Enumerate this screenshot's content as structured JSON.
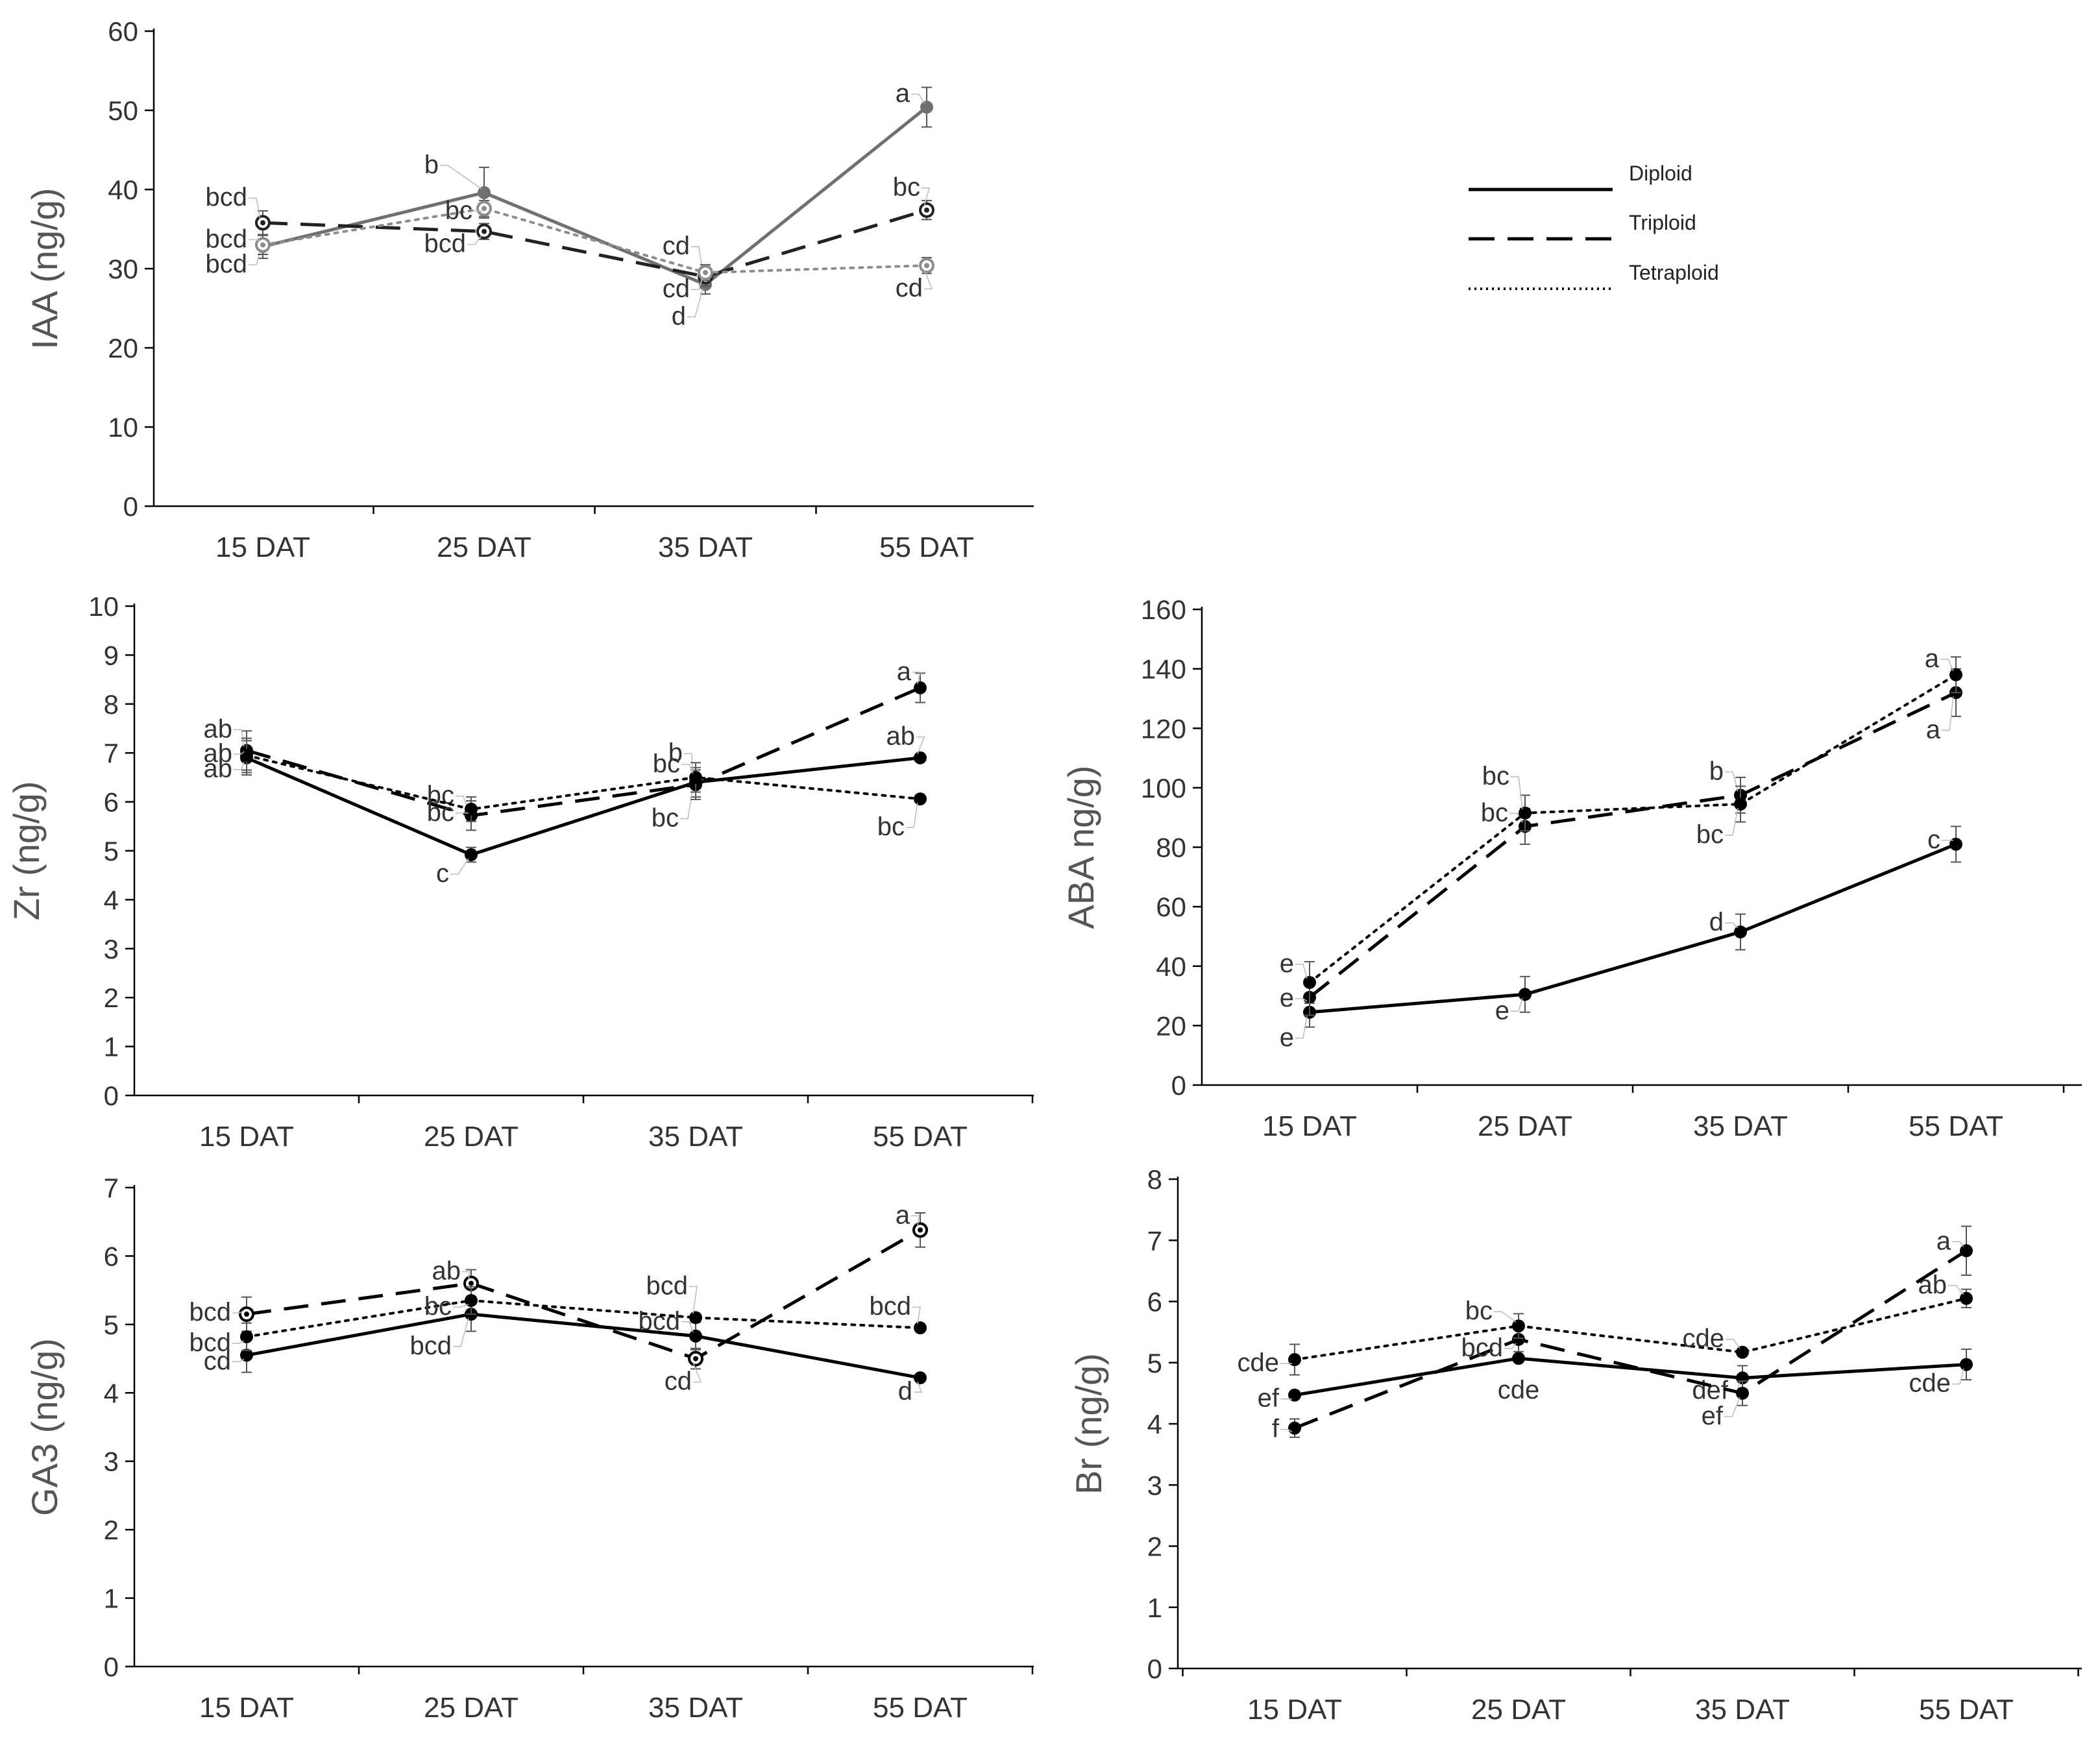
{
  "chart_data": [
    {
      "id": "iaa",
      "type": "line",
      "ylabel": "IAA (ng/g)",
      "categories": [
        "15 DAT",
        "25 DAT",
        "35 DAT",
        "55 DAT"
      ],
      "ylim": [
        0,
        60
      ],
      "yticks": [
        0,
        10,
        20,
        30,
        40,
        50,
        60
      ],
      "series": [
        {
          "name": "Diploid",
          "style": "solid",
          "color": "#707070",
          "values": [
            32.8,
            39.6,
            28.0,
            50.4
          ],
          "errors": [
            1.5,
            3.2,
            1.2,
            2.5
          ],
          "labels": [
            "bcd",
            "b",
            "d",
            "a"
          ],
          "marker": "filled"
        },
        {
          "name": "Triploid",
          "style": "dashed",
          "color": "#222222",
          "values": [
            35.8,
            34.7,
            29.0,
            37.4
          ],
          "errors": [
            1.5,
            1.0,
            1.2,
            1.2
          ],
          "labels": [
            "bcd",
            "bcd",
            "cd",
            "bc"
          ],
          "marker": "ring"
        },
        {
          "name": "Tetraploid",
          "style": "dotted",
          "color": "#8c8c8c",
          "values": [
            33.0,
            37.6,
            29.5,
            30.4
          ],
          "errors": [
            1.2,
            1.0,
            1.0,
            1.0
          ],
          "labels": [
            "bcd",
            "bc",
            "cd",
            "cd"
          ],
          "marker": "ring"
        }
      ]
    },
    {
      "id": "zr",
      "type": "line",
      "ylabel": "Zr (ng/g)",
      "categories": [
        "15 DAT",
        "25 DAT",
        "35 DAT",
        "55 DAT"
      ],
      "ylim": [
        0,
        10
      ],
      "yticks": [
        0,
        1,
        2,
        3,
        4,
        5,
        6,
        7,
        8,
        9,
        10
      ],
      "series": [
        {
          "name": "Diploid",
          "style": "solid",
          "color": "#000000",
          "values": [
            6.9,
            4.92,
            6.4,
            6.9
          ],
          "errors": [
            0.35,
            0.15,
            0.3,
            0
          ],
          "labels": [
            "ab",
            "c",
            "bc",
            "ab"
          ],
          "marker": "filled"
        },
        {
          "name": "Triploid",
          "style": "dashed",
          "color": "#000000",
          "values": [
            7.05,
            5.72,
            6.35,
            8.33
          ],
          "errors": [
            0.4,
            0.3,
            0.3,
            0.3
          ],
          "labels": [
            "ab",
            "bc",
            "b",
            "a"
          ],
          "marker": "filled"
        },
        {
          "name": "Tetraploid",
          "style": "dotted",
          "color": "#000000",
          "values": [
            6.95,
            5.85,
            6.5,
            6.06
          ],
          "errors": [
            0.35,
            0.25,
            0.3,
            0
          ],
          "labels": [
            "ab",
            "bc",
            "bc",
            "bc"
          ],
          "marker": "filled"
        }
      ]
    },
    {
      "id": "aba",
      "type": "line",
      "ylabel": "ABA ng/g)",
      "categories": [
        "15 DAT",
        "25 DAT",
        "35 DAT",
        "55 DAT"
      ],
      "ylim": [
        0,
        160
      ],
      "yticks": [
        0,
        20,
        40,
        60,
        80,
        100,
        120,
        140,
        160
      ],
      "series": [
        {
          "name": "Diploid",
          "style": "solid",
          "color": "#000000",
          "values": [
            24.5,
            30.5,
            51.5,
            81
          ],
          "errors": [
            5,
            6,
            6,
            6
          ],
          "labels": [
            "e",
            "e",
            "d",
            "c"
          ],
          "marker": "filled"
        },
        {
          "name": "Triploid",
          "style": "dashed",
          "color": "#000000",
          "values": [
            29.5,
            87,
            97.5,
            132
          ],
          "errors": [
            6,
            6,
            6,
            8
          ],
          "labels": [
            "e",
            "bc",
            "b",
            "a"
          ],
          "marker": "filled"
        },
        {
          "name": "Tetraploid",
          "style": "dotted",
          "color": "#000000",
          "values": [
            34.5,
            91.5,
            94.5,
            138
          ],
          "errors": [
            7,
            6,
            6,
            6
          ],
          "labels": [
            "e",
            "bc",
            "bc",
            "a"
          ],
          "marker": "filled"
        }
      ]
    },
    {
      "id": "ga3",
      "type": "line",
      "ylabel": "GA3 (ng/g)",
      "categories": [
        "15 DAT",
        "25 DAT",
        "35 DAT",
        "55 DAT"
      ],
      "ylim": [
        0,
        7
      ],
      "yticks": [
        0,
        1,
        2,
        3,
        4,
        5,
        6,
        7
      ],
      "series": [
        {
          "name": "Diploid",
          "style": "solid",
          "color": "#000000",
          "values": [
            4.55,
            5.15,
            4.83,
            4.22
          ],
          "errors": [
            0.25,
            0.25,
            0.2,
            0
          ],
          "labels": [
            "cd",
            "bcd",
            "bcd",
            "d"
          ],
          "marker": "filled"
        },
        {
          "name": "Triploid",
          "style": "dashed",
          "color": "#000000",
          "values": [
            5.15,
            5.6,
            4.5,
            6.38
          ],
          "errors": [
            0.25,
            0.2,
            0.15,
            0.25
          ],
          "labels": [
            "bcd",
            "ab",
            "cd",
            "a"
          ],
          "marker": "ring"
        },
        {
          "name": "Tetraploid",
          "style": "dotted",
          "color": "#000000",
          "values": [
            4.82,
            5.35,
            5.1,
            4.95
          ],
          "errors": [
            0.2,
            0.2,
            0,
            0
          ],
          "labels": [
            "bcd",
            "bc",
            "bcd",
            "bcd"
          ],
          "marker": "filled"
        }
      ]
    },
    {
      "id": "br",
      "type": "line",
      "ylabel": "Br (ng/g)",
      "categories": [
        "15 DAT",
        "25 DAT",
        "35 DAT",
        "55 DAT"
      ],
      "ylim": [
        0,
        8
      ],
      "yticks": [
        0,
        1,
        2,
        3,
        4,
        5,
        6,
        7,
        8
      ],
      "series": [
        {
          "name": "Diploid",
          "style": "solid",
          "color": "#000000",
          "values": [
            4.47,
            5.07,
            4.75,
            4.97
          ],
          "errors": [
            0,
            0,
            0.2,
            0.25
          ],
          "labels": [
            "ef",
            "cde",
            "def",
            "cde"
          ],
          "marker": "filled"
        },
        {
          "name": "Triploid",
          "style": "dashed",
          "color": "#000000",
          "values": [
            3.93,
            5.38,
            4.5,
            6.83
          ],
          "errors": [
            0.15,
            0.2,
            0.2,
            0.4
          ],
          "labels": [
            "f",
            "bcd",
            "ef",
            "a"
          ],
          "marker": "filled"
        },
        {
          "name": "Tetraploid",
          "style": "dotted",
          "color": "#000000",
          "values": [
            5.05,
            5.6,
            5.17,
            6.05
          ],
          "errors": [
            0.25,
            0.2,
            0,
            0.15
          ],
          "labels": [
            "cde",
            "bc",
            "cde",
            "ab"
          ],
          "marker": "filled"
        }
      ]
    }
  ],
  "legend": {
    "items": [
      {
        "name": "Diploid",
        "style": "solid"
      },
      {
        "name": "Triploid",
        "style": "dashed"
      },
      {
        "name": "Tetraploid",
        "style": "dotted"
      }
    ]
  }
}
